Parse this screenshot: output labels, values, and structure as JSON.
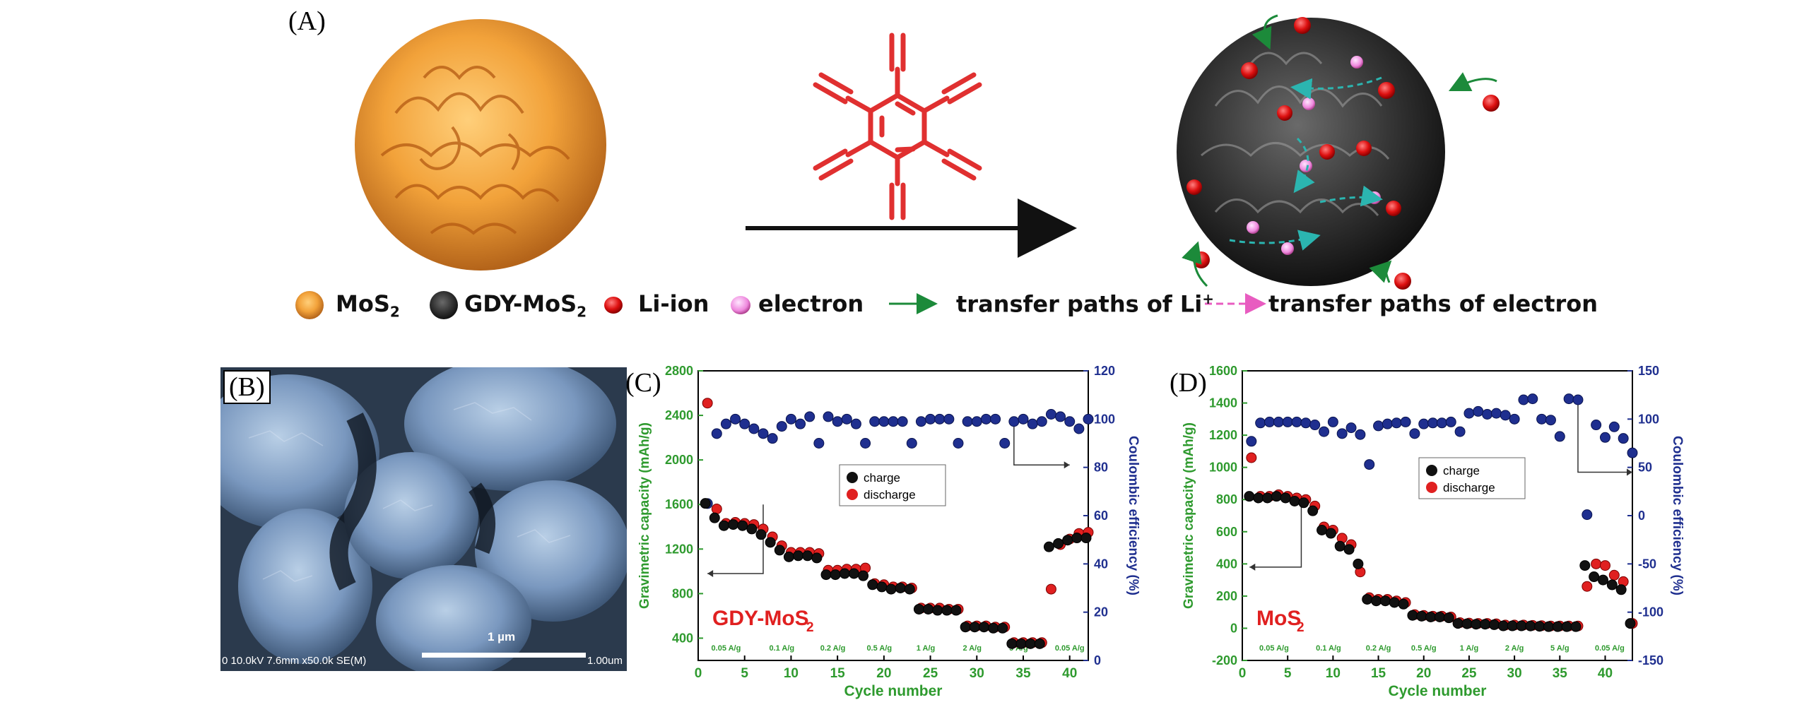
{
  "panels": {
    "a": "(A)",
    "b": "(B)",
    "c": "(C)",
    "d": "(D)"
  },
  "legend_a": {
    "mos2": "MoS",
    "mos2_sub": "2",
    "gdy_mos2": "GDY-MoS",
    "gdy_mos2_sub": "2",
    "li_ion": "Li-ion",
    "electron": "electron",
    "li_path": "transfer paths of Li",
    "li_path_sup": "+",
    "electron_path": "transfer paths of electron"
  },
  "sem": {
    "scale_label": "1 µm",
    "info": "0 10.0kV 7.6mm x50.0k SE(M)",
    "right_info": "1.00um"
  },
  "colors": {
    "left_axis": "#2e9a2e",
    "right_axis": "#1f2f8f",
    "charge": "#111111",
    "discharge": "#e02020",
    "ce": "#1f2f8f",
    "sample_label": "#e02020",
    "structure": "#e03030"
  },
  "chart_data": [
    {
      "type": "scatter",
      "sample_label": "GDY-MoS",
      "sample_label_sub": "2",
      "xlabel": "Cycle number",
      "ylabel": "Gravimetric capacity (mAh/g)",
      "y2label": "Coulombic efficiency (%)",
      "xlim": [
        0,
        42
      ],
      "ylim": [
        200,
        2800
      ],
      "y2lim": [
        0,
        120
      ],
      "xticks": [
        0,
        5,
        10,
        15,
        20,
        25,
        30,
        35,
        40
      ],
      "yticks": [
        400,
        800,
        1200,
        1600,
        2000,
        2400,
        2800
      ],
      "y2ticks": [
        0,
        20,
        40,
        60,
        80,
        100,
        120
      ],
      "legend": {
        "charge": "charge",
        "discharge": "discharge",
        "position": "center"
      },
      "rate_labels": [
        {
          "text": "0.05 A/g",
          "x": 3
        },
        {
          "text": "0.1 A/g",
          "x": 9
        },
        {
          "text": "0.2 A/g",
          "x": 14.5
        },
        {
          "text": "0.5 A/g",
          "x": 19.5
        },
        {
          "text": "1 A/g",
          "x": 24.5
        },
        {
          "text": "2 A/g",
          "x": 29.5
        },
        {
          "text": "5 A/g",
          "x": 34.5
        },
        {
          "text": "0.05 A/g",
          "x": 40
        }
      ],
      "series": [
        {
          "name": "charge",
          "x": [
            1,
            2,
            3,
            4,
            5,
            6,
            7,
            8,
            9,
            10,
            11,
            12,
            13,
            14,
            15,
            16,
            17,
            18,
            19,
            20,
            21,
            22,
            23,
            24,
            25,
            26,
            27,
            28,
            29,
            30,
            31,
            32,
            33,
            34,
            35,
            36,
            37,
            38,
            39,
            40,
            41,
            42
          ],
          "values": [
            1610,
            1480,
            1410,
            1420,
            1410,
            1380,
            1330,
            1260,
            1190,
            1130,
            1140,
            1140,
            1120,
            970,
            970,
            980,
            980,
            960,
            880,
            860,
            840,
            850,
            840,
            660,
            660,
            650,
            650,
            650,
            500,
            500,
            500,
            490,
            490,
            350,
            350,
            350,
            350,
            1220,
            1250,
            1280,
            1300,
            1300
          ]
        },
        {
          "name": "discharge",
          "x": [
            1,
            2,
            3,
            4,
            5,
            6,
            7,
            8,
            9,
            10,
            11,
            12,
            13,
            14,
            15,
            16,
            17,
            18,
            19,
            20,
            21,
            22,
            23,
            24,
            25,
            26,
            27,
            28,
            29,
            30,
            31,
            32,
            33,
            34,
            35,
            36,
            37,
            38,
            39,
            40,
            41,
            42
          ],
          "values": [
            2510,
            1560,
            1430,
            1440,
            1430,
            1420,
            1380,
            1310,
            1230,
            1170,
            1170,
            1170,
            1160,
            1010,
            1010,
            1020,
            1020,
            1030,
            890,
            880,
            860,
            860,
            850,
            670,
            670,
            670,
            660,
            660,
            510,
            510,
            510,
            500,
            500,
            360,
            360,
            360,
            360,
            840,
            1240,
            1290,
            1340,
            1350
          ]
        },
        {
          "name": "coulombic efficiency",
          "x": [
            1,
            2,
            3,
            4,
            5,
            6,
            7,
            8,
            9,
            10,
            11,
            12,
            13,
            14,
            15,
            16,
            17,
            18,
            19,
            20,
            21,
            22,
            23,
            24,
            25,
            26,
            27,
            28,
            29,
            30,
            31,
            32,
            33,
            34,
            35,
            36,
            37,
            38,
            39,
            40,
            41,
            42
          ],
          "values": [
            65,
            94,
            98,
            100,
            98,
            96,
            94,
            92,
            97,
            100,
            98,
            101,
            90,
            101,
            99,
            100,
            98,
            90,
            99,
            99,
            99,
            99,
            90,
            99,
            100,
            100,
            100,
            90,
            99,
            99,
            100,
            100,
            90,
            99,
            100,
            98,
            99,
            102,
            101,
            99,
            96,
            100
          ]
        }
      ]
    },
    {
      "type": "scatter",
      "sample_label": "MoS",
      "sample_label_sub": "2",
      "xlabel": "Cycle number",
      "ylabel": "Gravimetric capacity (mAh/g)",
      "y2label": "Coulombic efficiency (%)",
      "xlim": [
        0,
        43
      ],
      "ylim": [
        -200,
        1600
      ],
      "y2lim": [
        -150,
        150
      ],
      "xticks": [
        0,
        5,
        10,
        15,
        20,
        25,
        30,
        35,
        40
      ],
      "yticks": [
        -200,
        0,
        200,
        400,
        600,
        800,
        1000,
        1200,
        1400,
        1600
      ],
      "y2ticks": [
        -150,
        -100,
        -50,
        0,
        50,
        100,
        150
      ],
      "legend": {
        "charge": "charge",
        "discharge": "discharge",
        "position": "center-right"
      },
      "rate_labels": [
        {
          "text": "0.05 A/g",
          "x": 3.5
        },
        {
          "text": "0.1 A/g",
          "x": 9.5
        },
        {
          "text": "0.2 A/g",
          "x": 15
        },
        {
          "text": "0.5 A/g",
          "x": 20
        },
        {
          "text": "1 A/g",
          "x": 25
        },
        {
          "text": "2 A/g",
          "x": 30
        },
        {
          "text": "5 A/g",
          "x": 35
        },
        {
          "text": "0.05 A/g",
          "x": 40.5
        }
      ],
      "series": [
        {
          "name": "charge",
          "x": [
            1,
            2,
            3,
            4,
            5,
            6,
            7,
            8,
            9,
            10,
            11,
            12,
            13,
            14,
            15,
            16,
            17,
            18,
            19,
            20,
            21,
            22,
            23,
            24,
            25,
            26,
            27,
            28,
            29,
            30,
            31,
            32,
            33,
            34,
            35,
            36,
            37,
            38,
            39,
            40,
            41,
            42,
            43
          ],
          "values": [
            820,
            810,
            810,
            820,
            810,
            790,
            780,
            730,
            610,
            590,
            510,
            490,
            400,
            180,
            170,
            170,
            160,
            150,
            80,
            75,
            70,
            70,
            65,
            30,
            28,
            25,
            25,
            22,
            15,
            15,
            15,
            14,
            12,
            10,
            10,
            10,
            10,
            390,
            320,
            300,
            270,
            240,
            30
          ]
        },
        {
          "name": "discharge",
          "x": [
            1,
            2,
            3,
            4,
            5,
            6,
            7,
            8,
            9,
            10,
            11,
            12,
            13,
            14,
            15,
            16,
            17,
            18,
            19,
            20,
            21,
            22,
            23,
            24,
            25,
            26,
            27,
            28,
            29,
            30,
            31,
            32,
            33,
            34,
            35,
            36,
            37,
            38,
            39,
            40,
            41,
            42,
            43
          ],
          "values": [
            1060,
            820,
            820,
            830,
            820,
            810,
            800,
            760,
            630,
            610,
            560,
            520,
            350,
            190,
            180,
            180,
            170,
            160,
            85,
            80,
            75,
            75,
            70,
            35,
            32,
            30,
            30,
            28,
            20,
            20,
            20,
            18,
            16,
            14,
            14,
            14,
            14,
            260,
            400,
            390,
            330,
            290,
            30
          ]
        },
        {
          "name": "coulombic efficiency",
          "x": [
            1,
            2,
            3,
            4,
            5,
            6,
            7,
            8,
            9,
            10,
            11,
            12,
            13,
            14,
            15,
            16,
            17,
            18,
            19,
            20,
            21,
            22,
            23,
            24,
            25,
            26,
            27,
            28,
            29,
            30,
            31,
            32,
            33,
            34,
            35,
            36,
            37,
            38,
            39,
            40,
            41,
            42,
            43
          ],
          "values": [
            77,
            96,
            97,
            97,
            97,
            97,
            96,
            94,
            87,
            97,
            85,
            91,
            84,
            53,
            93,
            95,
            96,
            97,
            85,
            95,
            96,
            96,
            97,
            87,
            106,
            108,
            105,
            106,
            104,
            100,
            120,
            121,
            100,
            99,
            82,
            121,
            120,
            1,
            94,
            81,
            92,
            80,
            65
          ]
        }
      ]
    }
  ]
}
